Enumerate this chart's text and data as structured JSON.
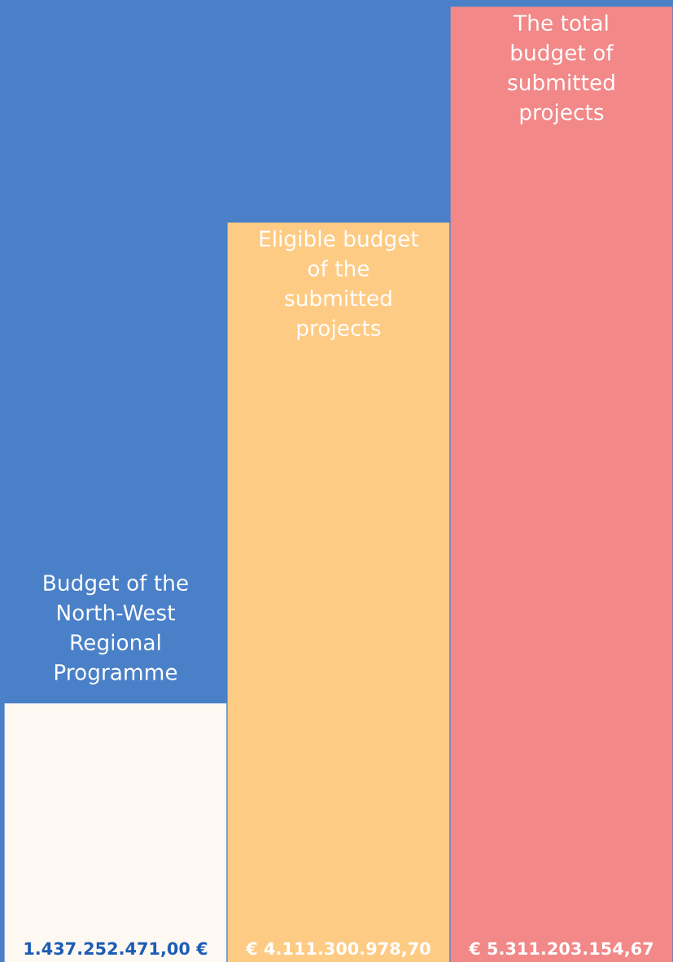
{
  "chart_data": {
    "type": "bar",
    "categories": [
      "Budget of the\nNorth-West\nRegional\nProgramme",
      "Eligible budget\nof the\nsubmitted\nprojects",
      "The total\nbudget of\nsubmitted\nprojects"
    ],
    "values": [
      1437252471.0,
      4111300978.7,
      5311203154.67
    ],
    "colors": [
      "#fdf8f2",
      "#fecb85",
      "#f28888"
    ],
    "value_labels": [
      "1.437.252.471,00 €",
      "€ 4.111.300.978,70",
      "€ 5.311.203.154,67"
    ],
    "grid": false
  }
}
